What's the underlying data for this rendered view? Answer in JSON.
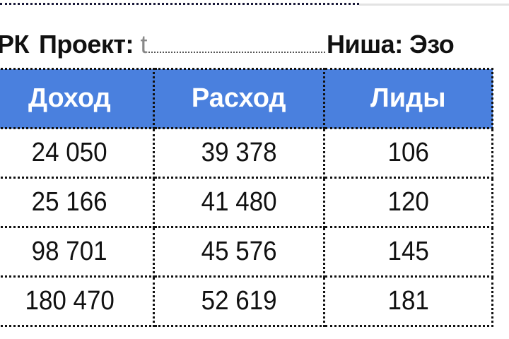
{
  "title": {
    "prefix": "РК",
    "project_label": "Проект:",
    "project_value_visible": "t",
    "niche_label": "Ниша: Эзо"
  },
  "table": {
    "header_color": "#4a80de",
    "columns": [
      "Доход",
      "Расход",
      "Лиды"
    ],
    "rows": [
      [
        "24 050",
        "39 378",
        "106"
      ],
      [
        "25 166",
        "41 480",
        "120"
      ],
      [
        "98 701",
        "45 576",
        "145"
      ],
      [
        "180 470",
        "52 619",
        "181"
      ]
    ]
  }
}
